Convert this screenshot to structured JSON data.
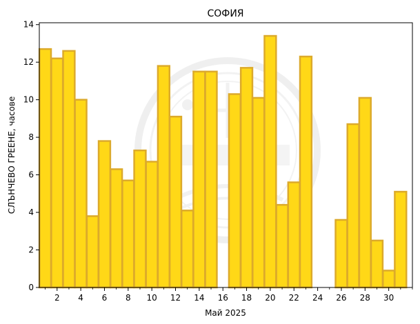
{
  "chart_data": {
    "type": "bar",
    "title": "СОФИЯ",
    "xlabel": "Май  2025",
    "ylabel": "СЛЪНЧЕВО ГРЕЕНЕ,  часове",
    "x": [
      1,
      2,
      3,
      4,
      5,
      6,
      7,
      8,
      9,
      10,
      11,
      12,
      13,
      14,
      15,
      16,
      17,
      18,
      19,
      20,
      21,
      22,
      23,
      24,
      25,
      26,
      27,
      28,
      29,
      30,
      31
    ],
    "values": [
      12.7,
      12.2,
      12.6,
      10.0,
      3.8,
      7.8,
      6.3,
      5.7,
      7.3,
      6.7,
      11.8,
      9.1,
      4.1,
      11.5,
      11.5,
      0,
      10.3,
      11.7,
      10.1,
      13.4,
      4.4,
      5.6,
      12.3,
      0,
      0,
      3.6,
      8.7,
      10.1,
      2.5,
      0.9,
      5.1
    ],
    "xticks": [
      2,
      4,
      6,
      8,
      10,
      12,
      14,
      16,
      18,
      20,
      22,
      24,
      26,
      28,
      30
    ],
    "yticks": [
      0,
      2,
      4,
      6,
      8,
      10,
      12,
      14
    ],
    "xlim": [
      0.5,
      32
    ],
    "ylim": [
      0,
      14.1
    ],
    "grid": false,
    "legend": "none",
    "colors": {
      "bar_fill": "#ffd817",
      "bar_edge": "#dcaa2b",
      "watermark": "#e6e6e6"
    }
  }
}
